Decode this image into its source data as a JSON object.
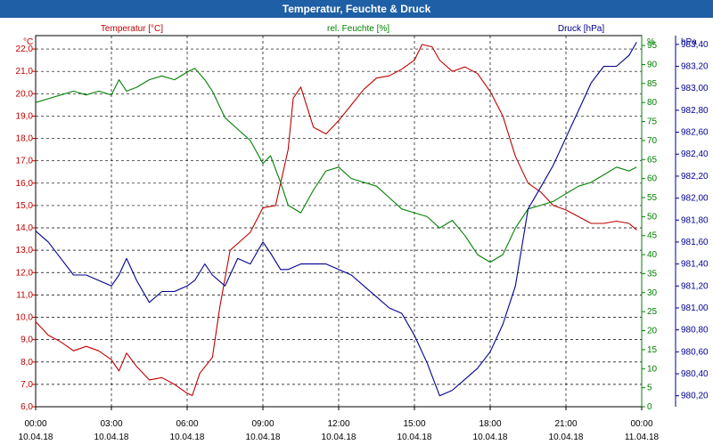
{
  "chart_data": {
    "type": "line",
    "title": "Temperatur, Feuchte & Druck",
    "legend": {
      "temperature": "Temperatur [°C]",
      "humidity": "rel. Feuchte [%]",
      "pressure": "Druck [hPa]"
    },
    "axes": {
      "left_unit": "°C",
      "right1_unit": "%",
      "right2_unit": "hPa",
      "left_range": [
        6.0,
        22.6
      ],
      "right1_range": [
        0,
        97.6
      ],
      "right2_range": [
        980.1,
        983.48
      ],
      "left_ticks": [
        "6,0",
        "7,0",
        "8,0",
        "9,0",
        "10,0",
        "11,0",
        "12,0",
        "13,0",
        "14,0",
        "15,0",
        "16,0",
        "17,0",
        "18,0",
        "19,0",
        "20,0",
        "21,0",
        "22,0"
      ],
      "right1_ticks": [
        "0",
        "5",
        "10",
        "15",
        "20",
        "25",
        "30",
        "35",
        "40",
        "45",
        "50",
        "55",
        "60",
        "65",
        "70",
        "75",
        "80",
        "85",
        "90",
        "95"
      ],
      "right2_ticks": [
        "980,20",
        "980,40",
        "980,60",
        "980,80",
        "981,00",
        "981,20",
        "981,40",
        "981,60",
        "981,80",
        "982,00",
        "982,20",
        "982,40",
        "982,60",
        "982,80",
        "983,00",
        "983,20",
        "983,40"
      ],
      "x_ticks": [
        {
          "time": "00:00",
          "date": "10.04.18"
        },
        {
          "time": "03:00",
          "date": "10.04.18"
        },
        {
          "time": "06:00",
          "date": "10.04.18"
        },
        {
          "time": "09:00",
          "date": "10.04.18"
        },
        {
          "time": "12:00",
          "date": "10.04.18"
        },
        {
          "time": "15:00",
          "date": "10.04.18"
        },
        {
          "time": "18:00",
          "date": "10.04.18"
        },
        {
          "time": "21:00",
          "date": "10.04.18"
        },
        {
          "time": "00:00",
          "date": "11.04.18"
        }
      ],
      "x_range_hours": [
        0,
        24
      ],
      "grid": true
    },
    "colors": {
      "temperature": "#c00000",
      "humidity": "#008000",
      "pressure": "#000090"
    },
    "series": [
      {
        "name": "Temperatur [°C]",
        "key": "temperature",
        "x": [
          0,
          0.5,
          1,
          1.5,
          2,
          2.5,
          3,
          3.3,
          3.6,
          4,
          4.5,
          5,
          5.5,
          6,
          6.2,
          6.5,
          7,
          7.3,
          7.7,
          8,
          8.5,
          9,
          9.5,
          10,
          10.2,
          10.5,
          11,
          11.5,
          12,
          12.5,
          13,
          13.5,
          14,
          14.5,
          15,
          15.3,
          15.7,
          16,
          16.5,
          17,
          17.5,
          18,
          18.5,
          19,
          19.5,
          20,
          20.5,
          21,
          21.5,
          22,
          22.5,
          23,
          23.5,
          23.8
        ],
        "values": [
          9.8,
          9.2,
          8.9,
          8.5,
          8.7,
          8.5,
          8.1,
          7.6,
          8.4,
          7.8,
          7.2,
          7.3,
          7.0,
          6.6,
          6.5,
          7.5,
          8.2,
          10.5,
          13.0,
          13.3,
          13.8,
          14.9,
          15.0,
          17.5,
          19.8,
          20.3,
          18.5,
          18.2,
          18.8,
          19.5,
          20.2,
          20.7,
          20.8,
          21.1,
          21.5,
          22.2,
          22.1,
          21.5,
          21.0,
          21.2,
          20.9,
          20.1,
          19.0,
          17.2,
          16.0,
          15.6,
          15.0,
          14.8,
          14.5,
          14.2,
          14.2,
          14.3,
          14.2,
          13.9
        ]
      },
      {
        "name": "rel. Feuchte [%]",
        "key": "humidity",
        "x": [
          0,
          0.5,
          1,
          1.5,
          2,
          2.5,
          3,
          3.3,
          3.6,
          4,
          4.5,
          5,
          5.5,
          6,
          6.3,
          6.7,
          7,
          7.5,
          8,
          8.5,
          9,
          9.3,
          9.7,
          10,
          10.5,
          11,
          11.5,
          12,
          12.5,
          13,
          13.5,
          14,
          14.5,
          15,
          15.5,
          16,
          16.5,
          17,
          17.5,
          18,
          18.5,
          19,
          19.5,
          20,
          20.5,
          21,
          21.5,
          22,
          22.5,
          23,
          23.5,
          23.8
        ],
        "values": [
          80,
          81,
          82,
          83,
          82,
          83,
          82,
          86,
          83,
          84,
          86,
          87,
          86,
          88,
          89,
          86,
          83,
          76,
          73,
          70,
          64,
          66,
          59,
          53,
          51,
          57,
          62,
          63,
          60,
          59,
          58,
          55,
          52,
          51,
          50,
          47,
          49,
          45,
          40,
          38,
          40,
          47,
          52,
          53,
          54,
          56,
          58,
          59,
          61,
          63,
          62,
          63
        ]
      },
      {
        "name": "Druck [hPa]",
        "key": "pressure",
        "x": [
          0,
          0.5,
          1,
          1.5,
          2,
          2.5,
          3,
          3.3,
          3.6,
          4,
          4.5,
          5,
          5.5,
          6,
          6.3,
          6.7,
          7,
          7.5,
          8,
          8.5,
          9,
          9.3,
          9.7,
          10,
          10.5,
          11,
          11.5,
          12,
          12.5,
          13,
          13.5,
          14,
          14.5,
          15,
          15.5,
          16,
          16.5,
          17,
          17.5,
          18,
          18.5,
          19,
          19.5,
          20,
          20.5,
          21,
          21.5,
          22,
          22.5,
          23,
          23.5,
          23.8
        ],
        "values": [
          981.7,
          981.6,
          981.45,
          981.3,
          981.3,
          981.25,
          981.2,
          981.3,
          981.45,
          981.25,
          981.05,
          981.15,
          981.15,
          981.2,
          981.25,
          981.4,
          981.3,
          981.2,
          981.45,
          981.4,
          981.6,
          981.5,
          981.35,
          981.35,
          981.4,
          981.4,
          981.4,
          981.35,
          981.3,
          981.2,
          981.1,
          981.0,
          980.95,
          980.75,
          980.5,
          980.2,
          980.25,
          980.35,
          980.45,
          980.6,
          980.85,
          981.2,
          981.9,
          982.1,
          982.3,
          982.55,
          982.8,
          983.05,
          983.2,
          983.2,
          983.3,
          983.42
        ]
      }
    ]
  }
}
